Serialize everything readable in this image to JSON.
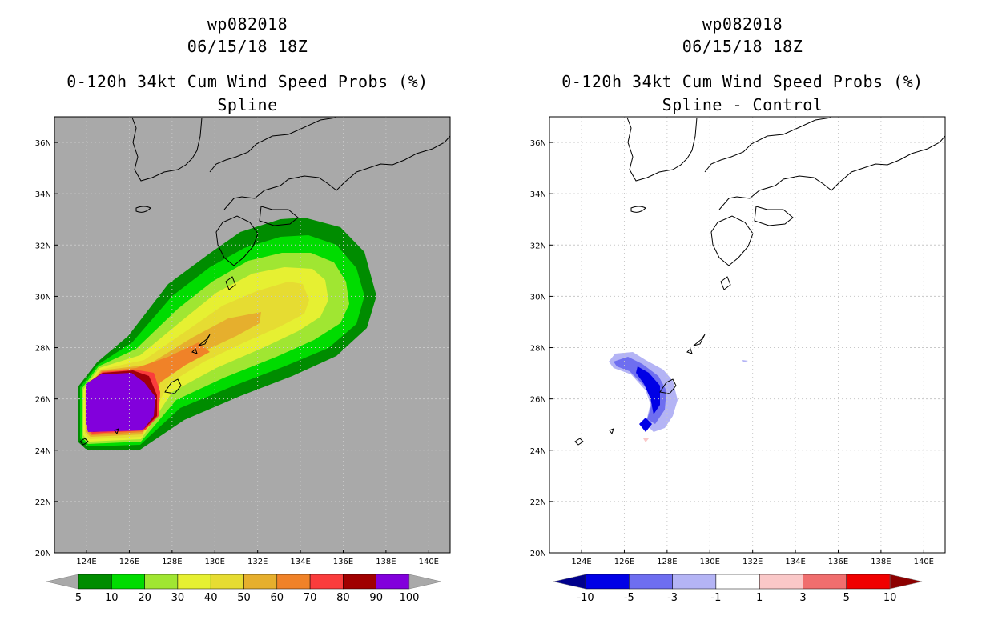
{
  "panels": [
    {
      "id": "left",
      "storm_id": "wp082018",
      "datetime": "06/15/18 18Z",
      "title": "0-120h 34kt Cum Wind Speed Probs (%)",
      "subtitle": "Spline",
      "background": "#a9a9a9",
      "colorbar": {
        "labels": [
          "5",
          "10",
          "20",
          "30",
          "40",
          "50",
          "60",
          "70",
          "80",
          "90",
          "100"
        ],
        "colors": [
          "#008c00",
          "#00dc00",
          "#a0e632",
          "#e6f032",
          "#e6dc32",
          "#e6af2d",
          "#f08228",
          "#fa3c3c",
          "#a00000",
          "#8200dc"
        ],
        "under_color": "#a9a9a9",
        "over_color": "#a9a9a9"
      }
    },
    {
      "id": "right",
      "storm_id": "wp082018",
      "datetime": "06/15/18 18Z",
      "title": "0-120h 34kt Cum Wind Speed Probs (%)",
      "subtitle": "Spline - Control",
      "background": "#ffffff",
      "colorbar": {
        "labels": [
          "-10",
          "-5",
          "-3",
          "-1",
          "1",
          "3",
          "5",
          "10"
        ],
        "colors": [
          "#0000e6",
          "#6e6ef0",
          "#b4b4f5",
          "#ffffff",
          "#fac8c8",
          "#f06e6e",
          "#f00000"
        ],
        "under_color": "#00008c",
        "over_color": "#8c0000"
      }
    }
  ],
  "map": {
    "lon_labels": [
      "124E",
      "126E",
      "128E",
      "130E",
      "132E",
      "134E",
      "136E",
      "138E",
      "140E"
    ],
    "lat_labels": [
      "20N",
      "22N",
      "24N",
      "26N",
      "28N",
      "30N",
      "32N",
      "34N",
      "36N"
    ],
    "lon_range": [
      122.5,
      141.0
    ],
    "lat_range": [
      20.0,
      37.0
    ],
    "grid": true
  }
}
